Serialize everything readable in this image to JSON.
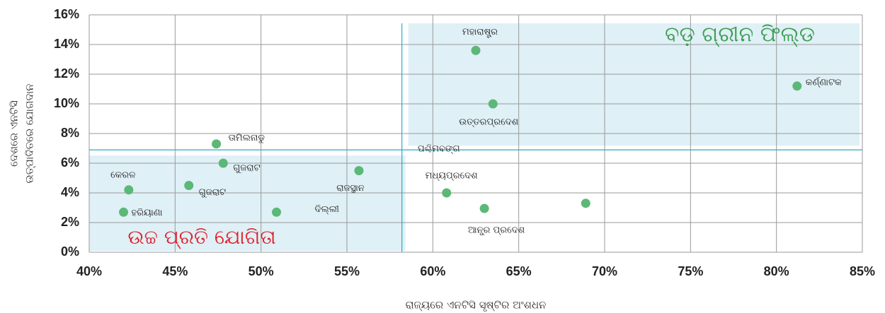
{
  "chart_data": {
    "type": "scatter",
    "x_label": "ରାଜ୍ୟରେ ଏନଟିସି ସୃଷ୍ଟିର ଅଂଶଧନ",
    "y_label": [
      "ଦେଶରେ ଏନଟିସି",
      "ଉତ୍ପାଦିତରେ ଯୋଗଦାନ"
    ],
    "color": "#5cb878",
    "grid": true,
    "xlim": [
      40,
      85
    ],
    "ylim": [
      0,
      16
    ],
    "xticks": [
      {
        "value": 40,
        "label": "40%"
      },
      {
        "value": 45,
        "label": "45%"
      },
      {
        "value": 50,
        "label": "50%"
      },
      {
        "value": 55,
        "label": "55%"
      },
      {
        "value": 60,
        "label": "60%"
      },
      {
        "value": 65,
        "label": "65%"
      },
      {
        "value": 70,
        "label": "70%"
      },
      {
        "value": 75,
        "label": "75%"
      },
      {
        "value": 80,
        "label": "80%"
      },
      {
        "value": 85,
        "label": "85%"
      }
    ],
    "yticks": [
      {
        "value": 0,
        "label": "0%"
      },
      {
        "value": 2,
        "label": "2%"
      },
      {
        "value": 4,
        "label": "4%"
      },
      {
        "value": 6,
        "label": "6%"
      },
      {
        "value": 8,
        "label": "8%"
      },
      {
        "value": 10,
        "label": "10%"
      },
      {
        "value": 12,
        "label": "12%"
      },
      {
        "value": 14,
        "label": "14%"
      },
      {
        "value": 16,
        "label": "16%"
      }
    ],
    "names": [
      "ମହାରାଷ୍ଟ୍ର",
      "କର୍ଣ୍ଣାଟକ",
      "ଉତ୍ତରପ୍ରଦେଶ",
      "ତାମିଲନାଡୁ",
      "ଗୁଜରାଟ",
      "ଗୁଜରାଟ",
      "କେରଳ",
      "ହରିୟାଣା",
      "ଦିଲ୍ଲୀ",
      "ରାଜସ୍ଥାନ",
      "ମଧ୍ୟପ୍ରଦେଶ",
      "ଆନ୍ଧ୍ର ପ୍ରଦେଶ",
      null
    ],
    "x": [
      62.5,
      81.2,
      63.5,
      47.4,
      47.8,
      45.8,
      42.3,
      42.0,
      50.9,
      55.7,
      60.8,
      63.0,
      68.9
    ],
    "y": [
      13.6,
      11.2,
      10.0,
      7.3,
      6.0,
      4.5,
      4.2,
      2.7,
      2.7,
      5.5,
      4.0,
      2.95,
      3.3
    ],
    "reference_lines": {
      "x": 58.2,
      "y": 6.9,
      "color": "#2aa9c9"
    },
    "annotations": [
      {
        "text": "ବଡ଼ ଗ୍ରୀନ ଫିଲ୍ଡ",
        "color": "#3f9e55"
      },
      {
        "text": "ଉଚ୍ଚ ପ୍ରତି ଯୋଗିତା",
        "color": "#e0202a"
      },
      {
        "text": "ପଶ୍ଚିମବଙ୍ଗ",
        "color": "#222222"
      }
    ]
  }
}
